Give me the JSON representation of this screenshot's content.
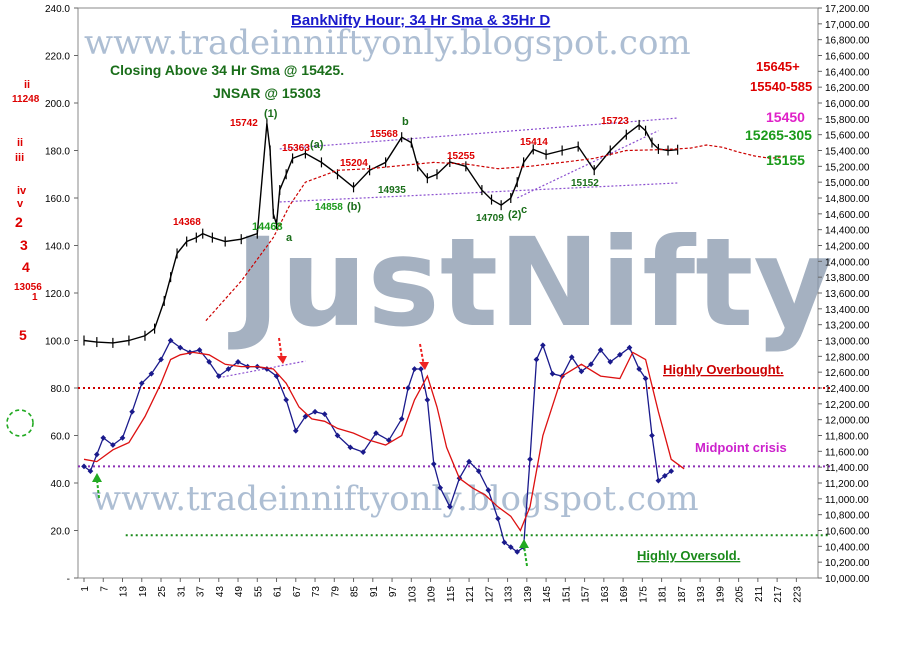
{
  "chart_data": {
    "type": "line",
    "title": "BankNifty Hour; 34 Hr Sma & 35Hr D",
    "watermark_url": "www.tradeinniftyonly.blogspot.com",
    "watermark_brand": "JustNifty",
    "left_axis": {
      "ticks": [
        "240.0",
        "220.0",
        "200.0",
        "180.0",
        "160.0",
        "140.0",
        "120.0",
        "100.0",
        "80.0",
        "60.0",
        "40.0",
        "20.0",
        "-"
      ],
      "range": [
        0,
        240
      ]
    },
    "right_axis": {
      "ticks": [
        "17,200.00",
        "17,000.00",
        "16,800.00",
        "16,600.00",
        "16,400.00",
        "16,200.00",
        "16,000.00",
        "15,800.00",
        "15,600.00",
        "15,400.00",
        "15,200.00",
        "15,000.00",
        "14,800.00",
        "14,600.00",
        "14,400.00",
        "14,200.00",
        "14,000.00",
        "13,800.00",
        "13,600.00",
        "13,400.00",
        "13,200.00",
        "13,000.00",
        "12,800.00",
        "12,600.00",
        "12,400.00",
        "12,200.00",
        "12,000.00",
        "11,800.00",
        "11,600.00",
        "11,400.00",
        "11,200.00",
        "11,000.00",
        "10,800.00",
        "10,600.00",
        "10,400.00",
        "10,200.00",
        "10,000.00"
      ],
      "range": [
        10000,
        17200
      ]
    },
    "x_ticks": [
      "1",
      "7",
      "13",
      "19",
      "25",
      "31",
      "37",
      "43",
      "49",
      "55",
      "61",
      "67",
      "73",
      "79",
      "85",
      "91",
      "97",
      "103",
      "109",
      "115",
      "121",
      "127",
      "133",
      "139",
      "145",
      "151",
      "157",
      "163",
      "169",
      "175",
      "181",
      "187",
      "193",
      "199",
      "205",
      "211",
      "217",
      "223"
    ],
    "x_range": [
      1,
      226
    ],
    "reference_lines": [
      {
        "name": "Highly Overbought.",
        "level": 80,
        "color": "#cc0000"
      },
      {
        "name": "Midpoint crisis",
        "level": 47,
        "color": "#8b2fb5"
      },
      {
        "name": "Highly Oversold.",
        "level": 18,
        "color": "#1a8a1a"
      }
    ],
    "series": [
      {
        "type": "price",
        "color": "#000000",
        "x": [
          1,
          5,
          10,
          15,
          20,
          23,
          26,
          28,
          30,
          33,
          36,
          38,
          41,
          45,
          50,
          55,
          58,
          59,
          60,
          61,
          62,
          64,
          66,
          70,
          75,
          80,
          85,
          90,
          95,
          100,
          103,
          105,
          108,
          111,
          115,
          120,
          125,
          128,
          131,
          134,
          136,
          138,
          141,
          145,
          150,
          155,
          160,
          165,
          170,
          174,
          176,
          178,
          180,
          183,
          186
        ],
        "y": [
          13000,
          12980,
          12970,
          13000,
          13060,
          13150,
          13500,
          13800,
          14100,
          14250,
          14300,
          14350,
          14300,
          14250,
          14280,
          14350,
          15742,
          15400,
          14600,
          14468,
          14900,
          15100,
          15300,
          15363,
          15250,
          15100,
          14935,
          15150,
          15250,
          15568,
          15500,
          15200,
          15050,
          15100,
          15255,
          15200,
          14900,
          14780,
          14709,
          14800,
          15000,
          15250,
          15414,
          15350,
          15400,
          15450,
          15152,
          15400,
          15600,
          15723,
          15650,
          15500,
          15420,
          15400,
          15410
        ]
      },
      {
        "type": "sma",
        "name": "",
        "color": "#cc0000",
        "x": [
          39,
          50,
          60,
          65,
          70,
          80,
          90,
          100,
          110,
          120,
          130,
          140,
          150,
          160,
          170,
          180,
          186,
          190,
          195,
          200,
          205,
          210,
          215,
          220
        ],
        "y": [
          13250,
          13750,
          14300,
          14700,
          15000,
          15150,
          15170,
          15210,
          15250,
          15230,
          15170,
          15200,
          15250,
          15300,
          15400,
          15410,
          15420,
          15430,
          15470,
          15440,
          15380,
          15330,
          15300,
          15330
        ]
      },
      {
        "type": "oscillator",
        "name": "",
        "color": "#1a1a8c",
        "x": [
          1,
          3,
          5,
          7,
          10,
          13,
          16,
          19,
          22,
          25,
          28,
          31,
          34,
          37,
          40,
          43,
          46,
          49,
          52,
          55,
          58,
          61,
          64,
          67,
          70,
          73,
          76,
          80,
          84,
          88,
          92,
          96,
          100,
          102,
          104,
          106,
          108,
          110,
          112,
          115,
          118,
          121,
          124,
          127,
          130,
          132,
          134,
          136,
          138,
          140,
          142,
          144,
          147,
          150,
          153,
          156,
          159,
          162,
          165,
          168,
          171,
          174,
          176,
          178,
          180,
          182,
          184
        ],
        "y": [
          47,
          45,
          52,
          59,
          56,
          59,
          70,
          82,
          86,
          92,
          100,
          97,
          95,
          96,
          91,
          85,
          88,
          91,
          89,
          89,
          88,
          85,
          75,
          62,
          68,
          70,
          69,
          60,
          55,
          53,
          61,
          58,
          67,
          80,
          88,
          88,
          75,
          48,
          38,
          30,
          42,
          49,
          45,
          37,
          25,
          15,
          13,
          11,
          13,
          50,
          92,
          98,
          86,
          85,
          93,
          87,
          90,
          96,
          91,
          94,
          97,
          88,
          84,
          60,
          41,
          43,
          45
        ]
      },
      {
        "type": "signal",
        "name": "",
        "color": "#dd1111",
        "x": [
          1,
          5,
          10,
          15,
          20,
          25,
          28,
          31,
          35,
          40,
          45,
          50,
          55,
          60,
          64,
          68,
          72,
          76,
          80,
          85,
          90,
          95,
          100,
          104,
          108,
          111,
          114,
          118,
          122,
          126,
          130,
          134,
          137,
          140,
          144,
          150,
          156,
          162,
          168,
          172,
          176,
          180,
          184,
          188
        ],
        "y": [
          50,
          49,
          54,
          57,
          68,
          82,
          92,
          94,
          95,
          94,
          90,
          89,
          89,
          88,
          82,
          72,
          67,
          66,
          63,
          61,
          58,
          56,
          60,
          75,
          85,
          72,
          55,
          42,
          38,
          35,
          30,
          26,
          20,
          30,
          60,
          85,
          90,
          85,
          84,
          95,
          92,
          70,
          50,
          46
        ]
      }
    ],
    "annotations": [
      {
        "text": "Closing Above 34 Hr Sma @ 15425.",
        "color": "#1a6e1a"
      },
      {
        "text": "JNSAR @ 15303",
        "color": "#1a6e1a"
      },
      {
        "text": "15645+",
        "color": "#dd0000"
      },
      {
        "text": "15540-585",
        "color": "#dd0000"
      },
      {
        "text": "15450",
        "color": "#e020c8"
      },
      {
        "text": "15265-305",
        "color": "#1a9a1a"
      },
      {
        "text": "15155",
        "color": "#1a9a1a"
      },
      {
        "text": "15742",
        "color": "#dd0000"
      },
      {
        "text": "(1)",
        "color": "#1a6e1a"
      },
      {
        "text": "15363",
        "color": "#dd0000"
      },
      {
        "text": "(a)",
        "color": "#1a6e1a"
      },
      {
        "text": "15204",
        "color": "#dd0000"
      },
      {
        "text": "15568",
        "color": "#dd0000"
      },
      {
        "text": "b",
        "color": "#1a6e1a"
      },
      {
        "text": "15255",
        "color": "#dd0000"
      },
      {
        "text": "15414",
        "color": "#dd0000"
      },
      {
        "text": "15723",
        "color": "#dd0000"
      },
      {
        "text": "14935",
        "color": "#1a6e1a"
      },
      {
        "text": "14858",
        "color": "#1a9a1a"
      },
      {
        "text": "(b)",
        "color": "#1a6e1a"
      },
      {
        "text": "14709",
        "color": "#1a6e1a"
      },
      {
        "text": "(2)",
        "color": "#1a6e1a"
      },
      {
        "text": "c",
        "color": "#1a6e1a"
      },
      {
        "text": "15152",
        "color": "#1a6e1a"
      },
      {
        "text": "14368",
        "color": "#dd0000"
      },
      {
        "text": "14468",
        "color": "#1a9a1a"
      },
      {
        "text": "a",
        "color": "#1a6e1a"
      },
      {
        "text": "ii",
        "color": "#dd0000"
      },
      {
        "text": "11248",
        "color": "#dd0000"
      },
      {
        "text": "ii",
        "color": "#dd0000"
      },
      {
        "text": "iii",
        "color": "#dd0000"
      },
      {
        "text": "iv",
        "color": "#dd0000"
      },
      {
        "text": "v",
        "color": "#dd0000"
      },
      {
        "text": "2",
        "color": "#dd0000"
      },
      {
        "text": "3",
        "color": "#dd0000"
      },
      {
        "text": "4",
        "color": "#dd0000"
      },
      {
        "text": "13056",
        "color": "#dd0000"
      },
      {
        "text": "1",
        "color": "#dd0000"
      },
      {
        "text": "5",
        "color": "#dd0000"
      }
    ]
  }
}
